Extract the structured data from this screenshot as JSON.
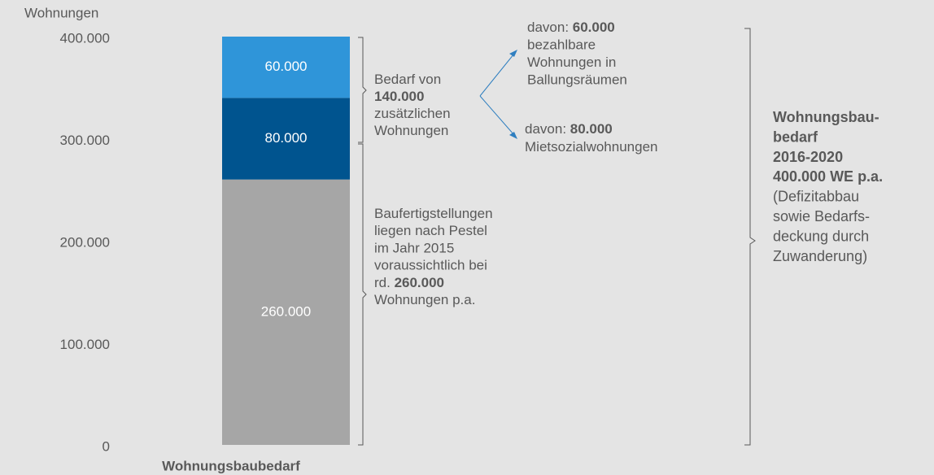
{
  "chart_data": {
    "type": "stacked_bar",
    "y_axis_label": "Wohnungen",
    "categories": [
      "Wohnungsbaubedarf"
    ],
    "series": [
      {
        "color": "#a6a6a6",
        "values": [
          260000
        ],
        "value_labels": [
          "260.000"
        ]
      },
      {
        "color": "#00548f",
        "values": [
          80000
        ],
        "value_labels": [
          "80.000"
        ]
      },
      {
        "color": "#2f95d9",
        "values": [
          60000
        ],
        "value_labels": [
          "60.000"
        ]
      }
    ],
    "ylim": [
      0,
      400000
    ],
    "yticks": [
      0,
      {
        "value": 100000,
        "label": "100.000"
      },
      {
        "value": 200000,
        "label": "200.000"
      },
      {
        "value": 300000,
        "label": "300.000"
      },
      {
        "value": 400000,
        "label": "400.000"
      }
    ],
    "annotations": [
      {
        "lines": [
          [
            {
              "text": "Bedarf von"
            }
          ],
          [
            {
              "text": "140.000",
              "bold": true
            }
          ],
          [
            {
              "text": "zusätzlichen"
            }
          ],
          [
            {
              "text": "Wohnungen"
            }
          ]
        ]
      },
      {
        "lines": [
          [
            {
              "text": "davon: "
            },
            {
              "text": "60.000",
              "bold": true
            }
          ],
          [
            {
              "text": "bezahlbare"
            }
          ],
          [
            {
              "text": "Wohnungen in"
            }
          ],
          [
            {
              "text": "Ballungsräumen"
            }
          ]
        ]
      },
      {
        "lines": [
          [
            {
              "text": "davon: "
            },
            {
              "text": "80.000",
              "bold": true
            }
          ],
          [
            {
              "text": "Mietsozialwohnungen"
            }
          ]
        ]
      },
      {
        "lines": [
          [
            {
              "text": "Baufertigstellungen"
            }
          ],
          [
            {
              "text": "liegen nach Pestel"
            }
          ],
          [
            {
              "text": "im Jahr 2015"
            }
          ],
          [
            {
              "text": "voraussichtlich bei"
            }
          ],
          [
            {
              "text": "rd. "
            },
            {
              "text": "260.000",
              "bold": true
            }
          ],
          [
            {
              "text": "Wohnungen p.a."
            }
          ]
        ]
      },
      {
        "lines": [
          [
            {
              "text": "Wohnungsbau-",
              "bold": true
            }
          ],
          [
            {
              "text": "bedarf",
              "bold": true
            }
          ],
          [
            {
              "text": "2016-2020",
              "bold": true
            }
          ],
          [
            {
              "text": "400.000 WE p.a.",
              "bold": true
            }
          ],
          [
            {
              "text": "(Defizitabbau"
            }
          ],
          [
            {
              "text": "sowie Bedarfs-"
            }
          ],
          [
            {
              "text": "deckung durch"
            }
          ],
          [
            {
              "text": "Zuwanderung)"
            }
          ]
        ]
      }
    ]
  }
}
